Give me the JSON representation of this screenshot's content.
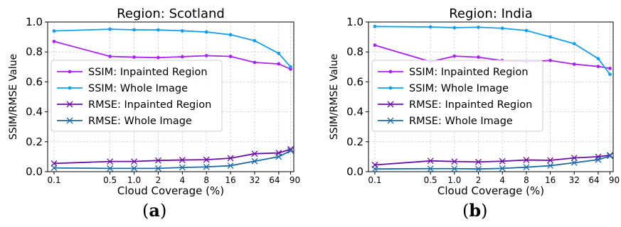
{
  "panel_labels": [
    "(a)",
    "(b)"
  ],
  "chart_data": [
    {
      "type": "line",
      "title": "Region: Scotland",
      "xlabel": "Cloud Coverage (%)",
      "ylabel": "SSIM/RMSE Value",
      "x_scale": "log",
      "x": [
        0.1,
        0.5,
        1.0,
        2,
        4,
        8,
        16,
        32,
        64,
        90
      ],
      "x_tick_labels": [
        "0.1",
        "0.5",
        "1.0",
        "2",
        "4",
        "8",
        "16",
        "32",
        "64",
        "90"
      ],
      "ylim": [
        0,
        1.0
      ],
      "y_ticks": [
        "0.0",
        "0.2",
        "0.4",
        "0.6",
        "0.8",
        "1.0"
      ],
      "grid": true,
      "legend_position": "center-left",
      "series": [
        {
          "name": "SSIM: Inpainted Region",
          "color": "#aa22ee",
          "marker": "dot",
          "values": [
            0.87,
            0.77,
            0.765,
            0.762,
            0.768,
            0.775,
            0.77,
            0.73,
            0.72,
            0.685
          ]
        },
        {
          "name": "SSIM: Whole Image",
          "color": "#11a0ee",
          "marker": "dot",
          "values": [
            0.94,
            0.952,
            0.948,
            0.947,
            0.941,
            0.933,
            0.915,
            0.875,
            0.79,
            0.7
          ]
        },
        {
          "name": "RMSE: Inpainted Region",
          "color": "#6a0dad",
          "marker": "x",
          "values": [
            0.055,
            0.068,
            0.068,
            0.075,
            0.078,
            0.08,
            0.09,
            0.12,
            0.125,
            0.15
          ]
        },
        {
          "name": "RMSE: Whole Image",
          "color": "#1a6aa8",
          "marker": "x",
          "values": [
            0.025,
            0.022,
            0.022,
            0.022,
            0.028,
            0.032,
            0.04,
            0.07,
            0.1,
            0.14
          ]
        }
      ]
    },
    {
      "type": "line",
      "title": "Region: India",
      "xlabel": "Cloud Coverage (%)",
      "ylabel": "SSIM/RMSE Value",
      "x_scale": "log",
      "x": [
        0.1,
        0.5,
        1.0,
        2,
        4,
        8,
        16,
        32,
        64,
        90
      ],
      "x_tick_labels": [
        "0.1",
        "0.5",
        "1.0",
        "2",
        "4",
        "8",
        "16",
        "32",
        "64",
        "90"
      ],
      "ylim": [
        0,
        1.0
      ],
      "y_ticks": [
        "0.0",
        "0.2",
        "0.4",
        "0.6",
        "0.8",
        "1.0"
      ],
      "grid": true,
      "legend_position": "center-left",
      "series": [
        {
          "name": "SSIM: Inpainted Region",
          "color": "#aa22ee",
          "marker": "dot",
          "values": [
            0.845,
            0.735,
            0.772,
            0.765,
            0.742,
            0.735,
            0.743,
            0.718,
            0.703,
            0.69
          ]
        },
        {
          "name": "SSIM: Whole Image",
          "color": "#11a0ee",
          "marker": "dot",
          "values": [
            0.97,
            0.967,
            0.962,
            0.965,
            0.958,
            0.943,
            0.9,
            0.855,
            0.755,
            0.65
          ]
        },
        {
          "name": "RMSE: Inpainted Region",
          "color": "#6a0dad",
          "marker": "x",
          "values": [
            0.045,
            0.072,
            0.068,
            0.065,
            0.07,
            0.078,
            0.076,
            0.092,
            0.1,
            0.11
          ]
        },
        {
          "name": "RMSE: Whole Image",
          "color": "#1a6aa8",
          "marker": "x",
          "values": [
            0.018,
            0.02,
            0.02,
            0.018,
            0.022,
            0.03,
            0.04,
            0.06,
            0.08,
            0.105
          ]
        }
      ]
    }
  ]
}
